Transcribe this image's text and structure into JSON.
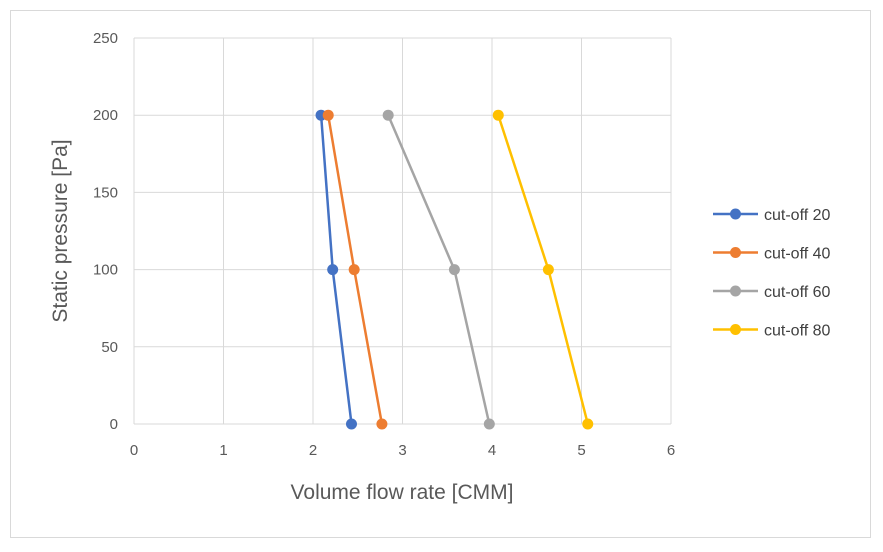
{
  "chart_data": {
    "type": "line",
    "xlabel": "Volume flow rate [CMM]",
    "ylabel": "Static pressure [Pa]",
    "xlim": [
      0,
      6
    ],
    "ylim": [
      0,
      250
    ],
    "xticks": [
      0,
      1,
      2,
      3,
      4,
      5,
      6
    ],
    "yticks": [
      0,
      50,
      100,
      150,
      200,
      250
    ],
    "grid": true,
    "legend_position": "right",
    "series": [
      {
        "name": "cut-off 20",
        "color": "#4472c4",
        "points": [
          [
            2.09,
            200
          ],
          [
            2.22,
            100
          ],
          [
            2.43,
            0
          ]
        ]
      },
      {
        "name": "cut-off 40",
        "color": "#ed7d31",
        "points": [
          [
            2.17,
            200
          ],
          [
            2.46,
            100
          ],
          [
            2.77,
            0
          ]
        ]
      },
      {
        "name": "cut-off 60",
        "color": "#a5a5a5",
        "points": [
          [
            2.84,
            200
          ],
          [
            3.58,
            100
          ],
          [
            3.97,
            0
          ]
        ]
      },
      {
        "name": "cut-off 80",
        "color": "#ffc000",
        "points": [
          [
            4.07,
            200
          ],
          [
            4.63,
            100
          ],
          [
            5.07,
            0
          ]
        ]
      }
    ]
  }
}
